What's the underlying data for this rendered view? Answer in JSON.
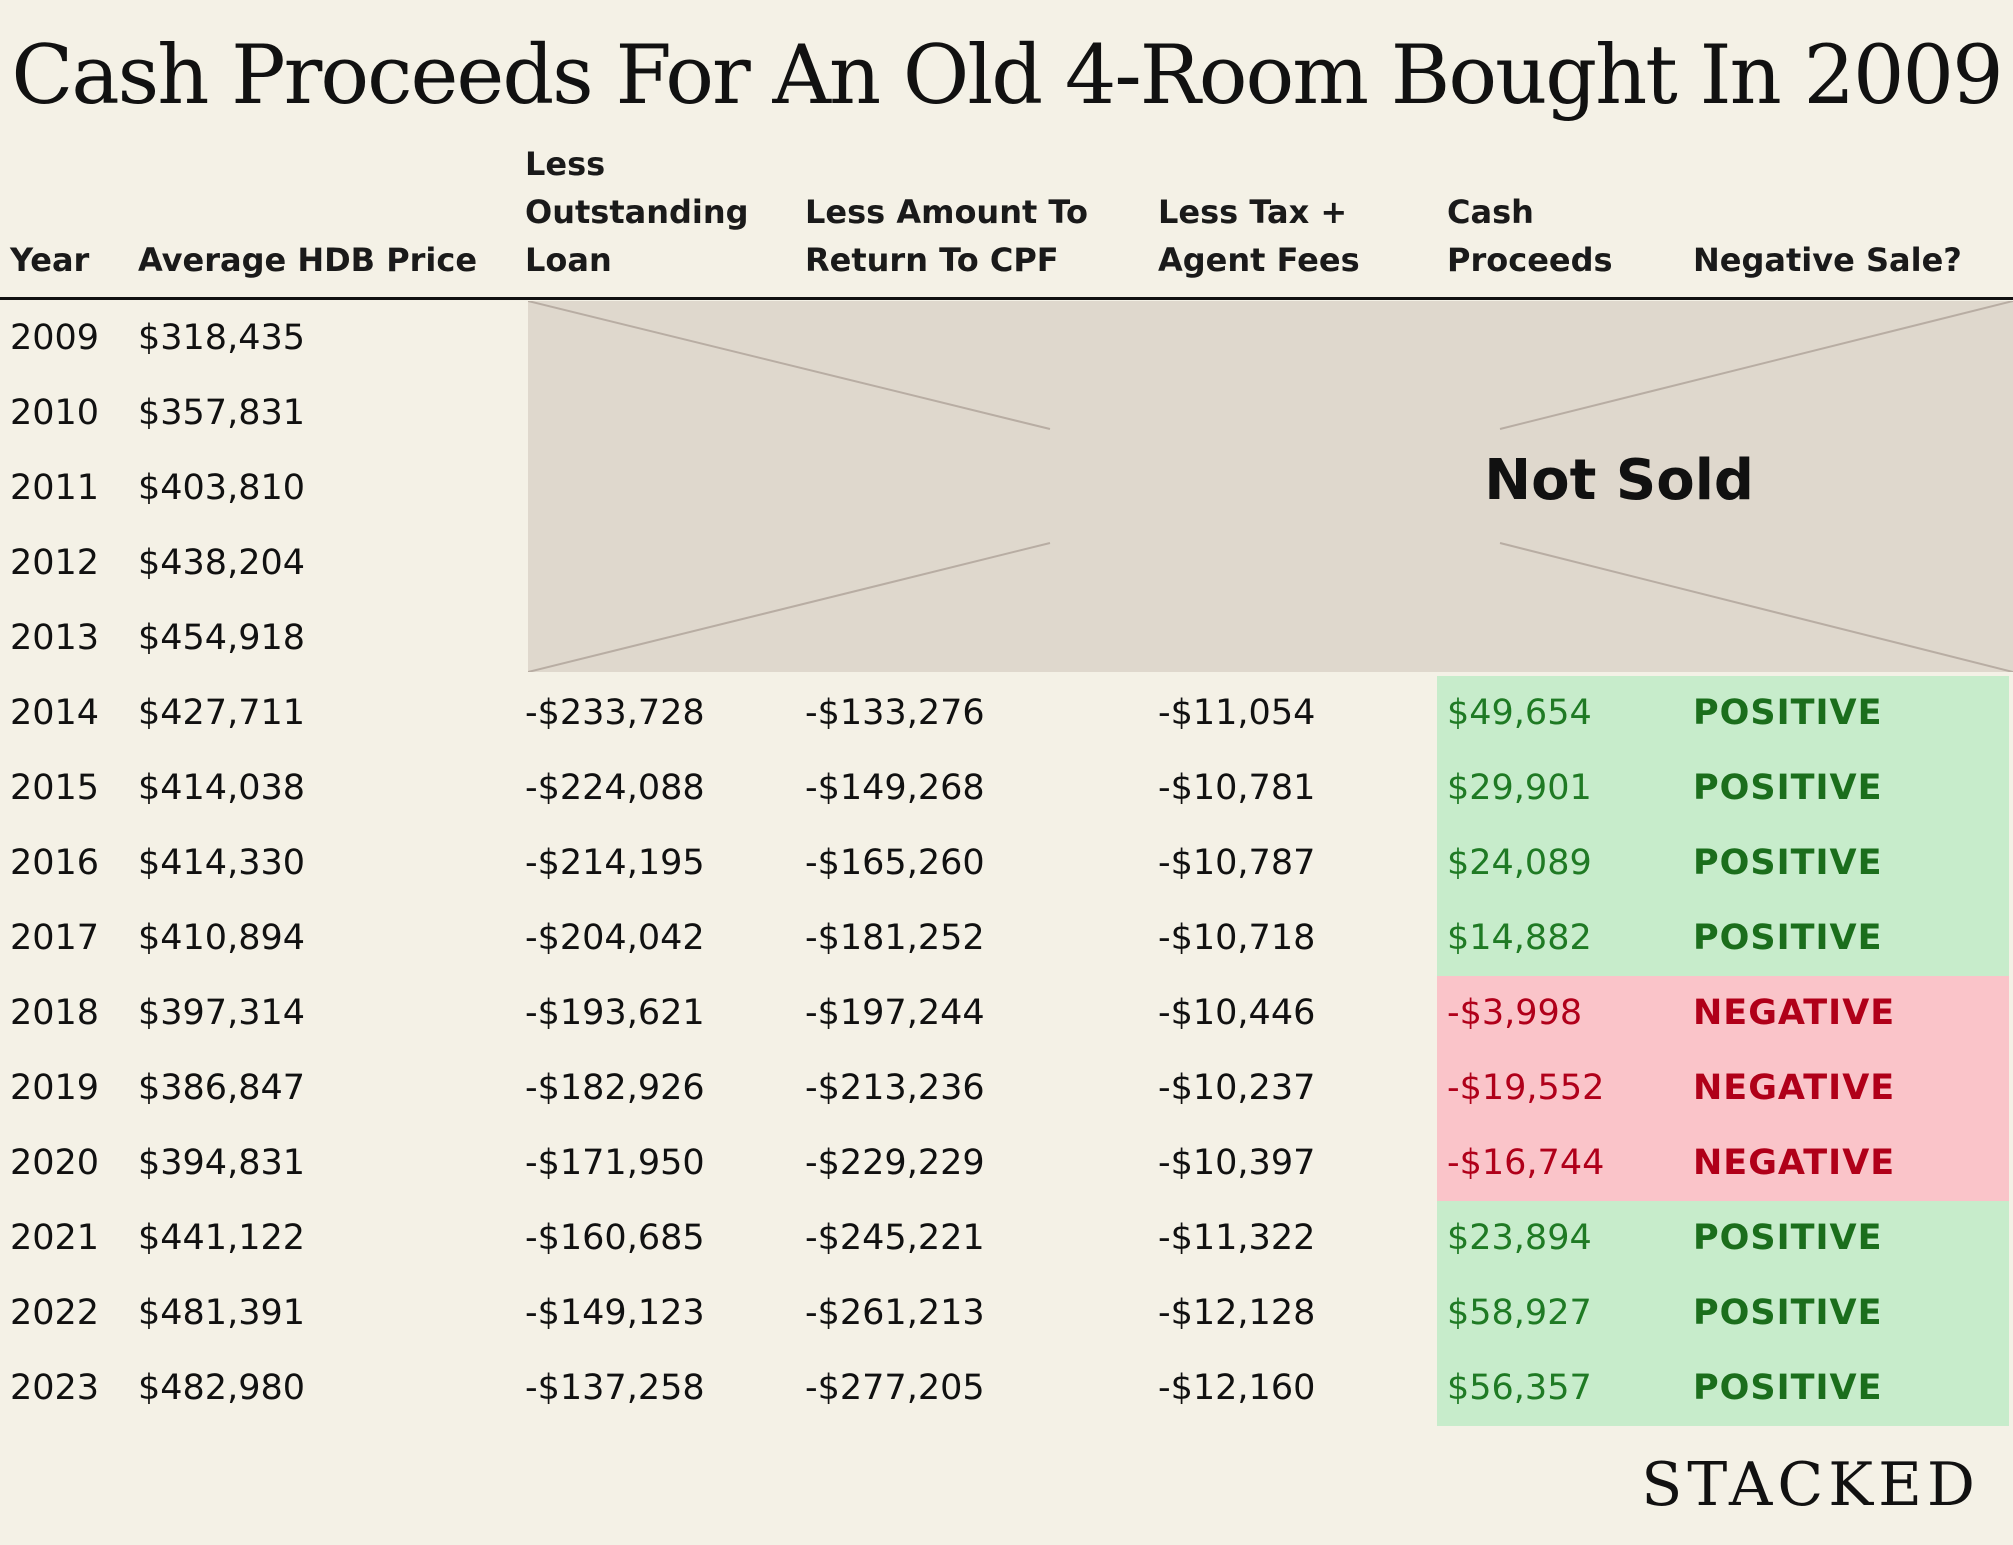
{
  "title": "Cash Proceeds For An Old 4-Room Bought In 2009",
  "brand": "STACKED",
  "colors": {
    "background": "#f4f1e6",
    "positive_fill": "#c7eccb",
    "negative_fill": "#fac4c9",
    "positive_text": "#1f7a24",
    "negative_text": "#b0001a",
    "not_sold_fill": "#dfd8cd"
  },
  "headers": {
    "year": [
      "Year"
    ],
    "price": [
      "Average HDB Price"
    ],
    "loan": [
      "Less",
      "Outstanding",
      "Loan"
    ],
    "cpf": [
      "Less Amount To",
      "Return To CPF"
    ],
    "tax": [
      "Less Tax +",
      "Agent Fees"
    ],
    "cash": [
      "Cash",
      "Proceeds"
    ],
    "negative": [
      "Negative Sale?"
    ]
  },
  "not_sold_label": "Not Sold",
  "chart_data": {
    "type": "table",
    "title": "Cash Proceeds For An Old 4-Room Bought In 2009",
    "columns": [
      "Year",
      "Average HDB Price",
      "Less Outstanding Loan",
      "Less Amount To Return To CPF",
      "Less Tax + Agent Fees",
      "Cash Proceeds",
      "Negative Sale?"
    ],
    "rows": [
      {
        "year": "2009",
        "price": "$318,435",
        "loan": "",
        "cpf": "",
        "tax": "",
        "cash": "",
        "status": ""
      },
      {
        "year": "2010",
        "price": "$357,831",
        "loan": "",
        "cpf": "",
        "tax": "",
        "cash": "",
        "status": ""
      },
      {
        "year": "2011",
        "price": "$403,810",
        "loan": "",
        "cpf": "",
        "tax": "",
        "cash": "",
        "status": ""
      },
      {
        "year": "2012",
        "price": "$438,204",
        "loan": "",
        "cpf": "",
        "tax": "",
        "cash": "",
        "status": ""
      },
      {
        "year": "2013",
        "price": "$454,918",
        "loan": "",
        "cpf": "",
        "tax": "",
        "cash": "",
        "status": ""
      },
      {
        "year": "2014",
        "price": "$427,711",
        "loan": "-$233,728",
        "cpf": "-$133,276",
        "tax": "-$11,054",
        "cash": "$49,654",
        "status": "POSITIVE"
      },
      {
        "year": "2015",
        "price": "$414,038",
        "loan": "-$224,088",
        "cpf": "-$149,268",
        "tax": "-$10,781",
        "cash": "$29,901",
        "status": "POSITIVE"
      },
      {
        "year": "2016",
        "price": "$414,330",
        "loan": "-$214,195",
        "cpf": "-$165,260",
        "tax": "-$10,787",
        "cash": "$24,089",
        "status": "POSITIVE"
      },
      {
        "year": "2017",
        "price": "$410,894",
        "loan": "-$204,042",
        "cpf": "-$181,252",
        "tax": "-$10,718",
        "cash": "$14,882",
        "status": "POSITIVE"
      },
      {
        "year": "2018",
        "price": "$397,314",
        "loan": "-$193,621",
        "cpf": "-$197,244",
        "tax": "-$10,446",
        "cash": "-$3,998",
        "status": "NEGATIVE"
      },
      {
        "year": "2019",
        "price": "$386,847",
        "loan": "-$182,926",
        "cpf": "-$213,236",
        "tax": "-$10,237",
        "cash": "-$19,552",
        "status": "NEGATIVE"
      },
      {
        "year": "2020",
        "price": "$394,831",
        "loan": "-$171,950",
        "cpf": "-$229,229",
        "tax": "-$10,397",
        "cash": "-$16,744",
        "status": "NEGATIVE"
      },
      {
        "year": "2021",
        "price": "$441,122",
        "loan": "-$160,685",
        "cpf": "-$245,221",
        "tax": "-$11,322",
        "cash": "$23,894",
        "status": "POSITIVE"
      },
      {
        "year": "2022",
        "price": "$481,391",
        "loan": "-$149,123",
        "cpf": "-$261,213",
        "tax": "-$12,128",
        "cash": "$58,927",
        "status": "POSITIVE"
      },
      {
        "year": "2023",
        "price": "$482,980",
        "loan": "-$137,258",
        "cpf": "-$277,205",
        "tax": "-$12,160",
        "cash": "$56,357",
        "status": "POSITIVE"
      }
    ]
  }
}
